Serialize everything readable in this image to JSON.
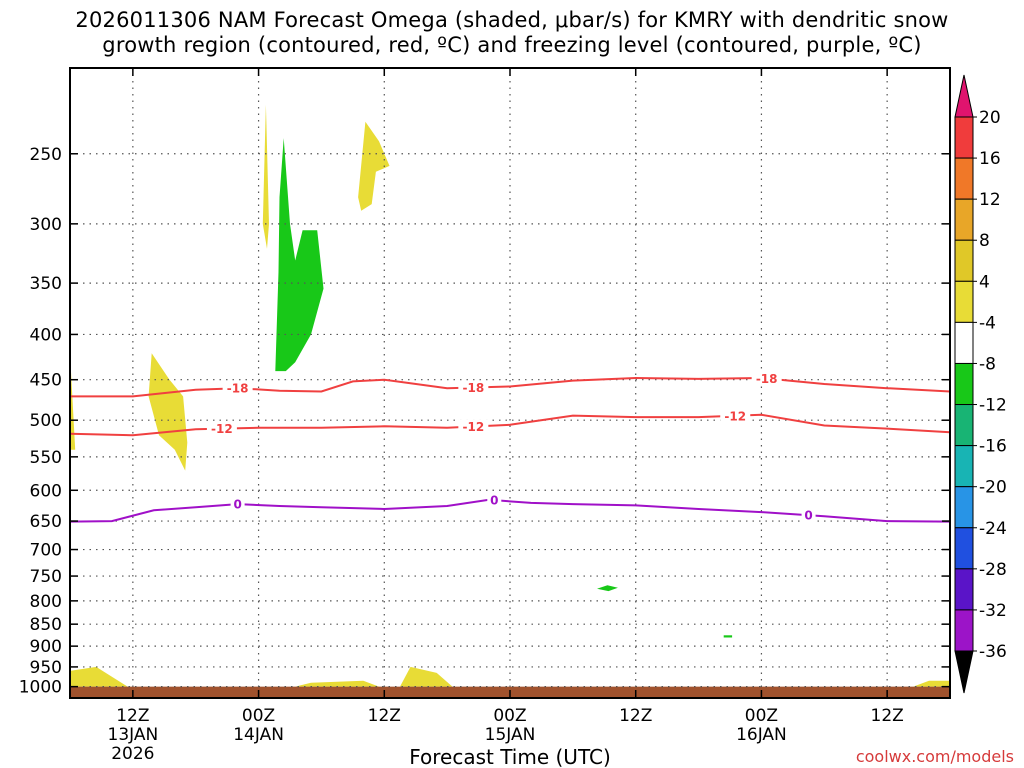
{
  "chart_data": {
    "type": "contour-time-height",
    "title_line1": "2026011306 NAM Forecast Omega (shaded, μbar/s) for KMRY with dendritic snow",
    "title_line2": "growth region (contoured, red, ºC) and freezing level (contoured, purple, ºC)",
    "xlabel": "Forecast Time (UTC)",
    "ylabel": "",
    "y_axis": {
      "scale": "log-pressure",
      "range_hpa": [
        200,
        1030
      ],
      "ticks": [
        250,
        300,
        350,
        400,
        450,
        500,
        550,
        600,
        650,
        700,
        750,
        800,
        850,
        900,
        950,
        1000
      ]
    },
    "x_axis": {
      "range_hours": [
        0,
        84
      ],
      "ticks": [
        {
          "hour": 6,
          "line1": "12Z",
          "line2": "13JAN",
          "line3": "2026"
        },
        {
          "hour": 18,
          "line1": "00Z",
          "line2": "14JAN",
          "line3": ""
        },
        {
          "hour": 30,
          "line1": "12Z",
          "line2": "",
          "line3": ""
        },
        {
          "hour": 42,
          "line1": "00Z",
          "line2": "15JAN",
          "line3": ""
        },
        {
          "hour": 54,
          "line1": "12Z",
          "line2": "",
          "line3": ""
        },
        {
          "hour": 66,
          "line1": "00Z",
          "line2": "16JAN",
          "line3": ""
        },
        {
          "hour": 78,
          "line1": "12Z",
          "line2": "",
          "line3": ""
        }
      ]
    },
    "grid": true,
    "colorbar": {
      "labels": [
        "20",
        "16",
        "12",
        "8",
        "4",
        "-4",
        "-8",
        "-12",
        "-16",
        "-20",
        "-24",
        "-28",
        "-32",
        "-36"
      ],
      "colors": [
        "#f03c3c",
        "#f07828",
        "#e8a628",
        "#e0c828",
        "#e8dc36",
        "#ffffff",
        "#18c818",
        "#18b474",
        "#18b4b4",
        "#2894e6",
        "#2050e0",
        "#5a14c8",
        "#9c14c8",
        "#a0a0a0"
      ],
      "top_arrow_color": "#e0146e",
      "bottom_arrow_color": "#000000"
    },
    "contours": [
      {
        "name": "dgz-minus18",
        "label": "-18",
        "color": "#f04040",
        "points": [
          [
            0,
            470
          ],
          [
            6,
            470
          ],
          [
            12,
            462
          ],
          [
            16,
            460
          ],
          [
            20,
            463
          ],
          [
            24,
            464
          ],
          [
            27,
            452
          ],
          [
            30,
            450
          ],
          [
            36,
            460
          ],
          [
            42,
            458
          ],
          [
            48,
            451
          ],
          [
            54,
            448
          ],
          [
            60,
            449
          ],
          [
            66,
            448
          ],
          [
            72,
            455
          ],
          [
            78,
            460
          ],
          [
            84,
            464
          ]
        ],
        "label_hours": [
          16,
          38.5,
          66.5
        ]
      },
      {
        "name": "dgz-minus12",
        "label": "-12",
        "color": "#f04040",
        "points": [
          [
            0,
            518
          ],
          [
            6,
            520
          ],
          [
            12,
            512
          ],
          [
            18,
            510
          ],
          [
            24,
            510
          ],
          [
            30,
            508
          ],
          [
            36,
            510
          ],
          [
            42,
            506
          ],
          [
            48,
            494
          ],
          [
            54,
            496
          ],
          [
            60,
            496
          ],
          [
            66,
            493
          ],
          [
            72,
            507
          ],
          [
            78,
            511
          ],
          [
            84,
            516
          ]
        ],
        "label_hours": [
          14.5,
          38.5,
          63.5
        ]
      },
      {
        "name": "freezing-level",
        "label": "0",
        "color": "#a010c8",
        "points": [
          [
            0,
            651
          ],
          [
            4,
            650
          ],
          [
            8,
            632
          ],
          [
            12,
            627
          ],
          [
            16,
            622
          ],
          [
            20,
            625
          ],
          [
            24,
            627
          ],
          [
            30,
            630
          ],
          [
            36,
            625
          ],
          [
            40,
            615
          ],
          [
            44,
            620
          ],
          [
            48,
            622
          ],
          [
            54,
            624
          ],
          [
            60,
            630
          ],
          [
            66,
            635
          ],
          [
            72,
            642
          ],
          [
            78,
            650
          ],
          [
            84,
            651
          ]
        ],
        "label_hours": [
          16,
          40.5,
          70.5
        ]
      }
    ],
    "omega_regions": [
      {
        "name": "rising-green-upper",
        "value": -6,
        "color": "#18c818",
        "points": [
          [
            19.6,
            440
          ],
          [
            19.9,
            340
          ],
          [
            20,
            280
          ],
          [
            20.4,
            240
          ],
          [
            21,
            300
          ],
          [
            21.5,
            330
          ],
          [
            22.2,
            305
          ],
          [
            23.6,
            305
          ],
          [
            24.2,
            355
          ],
          [
            23,
            400
          ],
          [
            21.5,
            430
          ],
          [
            20.6,
            440
          ]
        ]
      },
      {
        "name": "rising-green-low",
        "value": -6,
        "color": "#18c818",
        "points": [
          [
            50.3,
            775
          ],
          [
            51.3,
            768
          ],
          [
            52.3,
            773
          ],
          [
            51.4,
            780
          ]
        ]
      },
      {
        "name": "rising-green-dot",
        "value": -6,
        "color": "#18c818",
        "points": [
          [
            62.4,
            875
          ],
          [
            63.2,
            875
          ],
          [
            63.2,
            880
          ],
          [
            62.4,
            880
          ]
        ]
      },
      {
        "name": "sinking-yellow-1",
        "value": 5,
        "color": "#e8dc36",
        "points": [
          [
            18.4,
            300
          ],
          [
            18.7,
            220
          ],
          [
            19,
            300
          ],
          [
            18.8,
            320
          ]
        ]
      },
      {
        "name": "sinking-yellow-2",
        "value": 5,
        "color": "#e8dc36",
        "points": [
          [
            27.5,
            280
          ],
          [
            28.2,
            230
          ],
          [
            29.5,
            242
          ],
          [
            30.5,
            258
          ],
          [
            29.2,
            262
          ],
          [
            28.8,
            285
          ],
          [
            27.8,
            290
          ]
        ]
      },
      {
        "name": "sinking-yellow-3",
        "value": 5,
        "color": "#e8dc36",
        "points": [
          [
            7.5,
            470
          ],
          [
            7.8,
            420
          ],
          [
            9.5,
            450
          ],
          [
            10.8,
            470
          ],
          [
            11.2,
            530
          ],
          [
            11,
            570
          ],
          [
            10,
            540
          ],
          [
            8.5,
            520
          ]
        ]
      },
      {
        "name": "sinking-yellow-4",
        "value": 5,
        "color": "#e8dc36",
        "points": [
          [
            0,
            540
          ],
          [
            0,
            420
          ],
          [
            0.5,
            540
          ]
        ]
      },
      {
        "name": "sinking-yellow-sfc1",
        "value": 5,
        "color": "#e8dc36",
        "points": [
          [
            0,
            1000
          ],
          [
            0,
            960
          ],
          [
            2.5,
            950
          ],
          [
            5.5,
            1000
          ]
        ]
      },
      {
        "name": "sinking-yellow-sfc2",
        "value": 5,
        "color": "#e8dc36",
        "points": [
          [
            21.5,
            1000
          ],
          [
            23,
            990
          ],
          [
            28,
            985
          ],
          [
            29.5,
            1000
          ]
        ]
      },
      {
        "name": "sinking-yellow-sfc3",
        "value": 5,
        "color": "#e8dc36",
        "points": [
          [
            31.5,
            1000
          ],
          [
            32.5,
            950
          ],
          [
            35,
            965
          ],
          [
            36.5,
            1000
          ]
        ]
      },
      {
        "name": "sinking-yellow-sfc4",
        "value": 5,
        "color": "#e8dc36",
        "points": [
          [
            80.5,
            1000
          ],
          [
            82,
            985
          ],
          [
            84,
            985
          ],
          [
            84,
            1000
          ]
        ]
      }
    ],
    "ground": {
      "name": "ground-surface",
      "top_hpa": 1000,
      "color": "#a0522d"
    }
  },
  "credit": "coolwx.com/models"
}
